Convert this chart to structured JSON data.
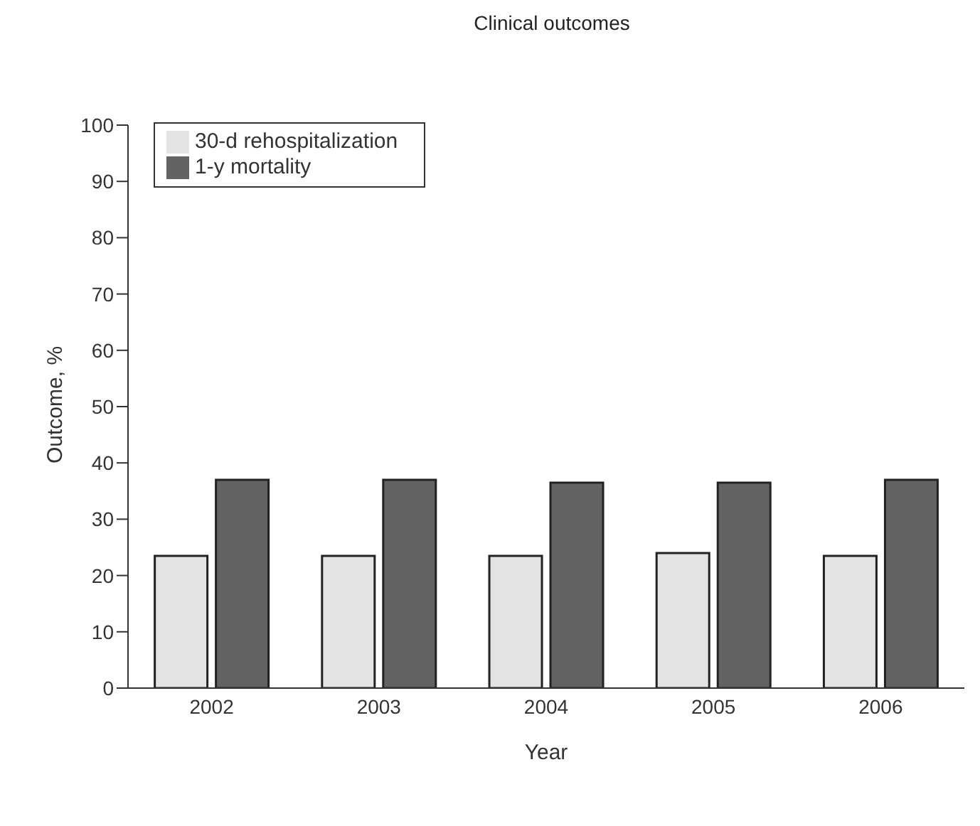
{
  "chart_data": {
    "type": "bar",
    "title": "Clinical outcomes",
    "xlabel": "Year",
    "ylabel": "Outcome, %",
    "categories": [
      "2002",
      "2003",
      "2004",
      "2005",
      "2006"
    ],
    "series": [
      {
        "name": "30-d rehospitalization",
        "color": "#e3e3e3",
        "values": [
          23.5,
          23.5,
          23.5,
          24,
          23.5
        ]
      },
      {
        "name": "1-y mortality",
        "color": "#636363",
        "values": [
          37,
          37,
          36.5,
          36.5,
          37
        ]
      }
    ],
    "ylim": [
      0,
      100
    ],
    "yticks": [
      0,
      10,
      20,
      30,
      40,
      50,
      60,
      70,
      80,
      90,
      100
    ],
    "grid": false,
    "legend": "top left"
  }
}
